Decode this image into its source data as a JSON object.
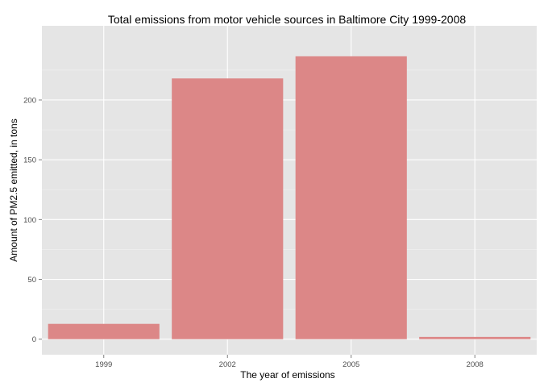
{
  "chart_data": {
    "type": "bar",
    "title": "Total emissions from motor vehicle sources in Baltimore City 1999-2008",
    "xlabel": "The year of emissions",
    "ylabel": "Amount of PM2.5 emitted, in tons",
    "categories": [
      "1999",
      "2002",
      "2005",
      "2008"
    ],
    "values": [
      12.8,
      218,
      236.5,
      1.9
    ],
    "ylim": [
      -13,
      262
    ],
    "yticks": [
      0,
      50,
      100,
      150,
      200
    ],
    "grid": true,
    "colors": {
      "bar": "#DC8787",
      "panel": "#E5E5E5",
      "grid_major": "#FFFFFF",
      "grid_minor": "#F2F2F2",
      "tick_text": "#4D4D4D",
      "tick_mark": "#7F7F7F"
    }
  }
}
